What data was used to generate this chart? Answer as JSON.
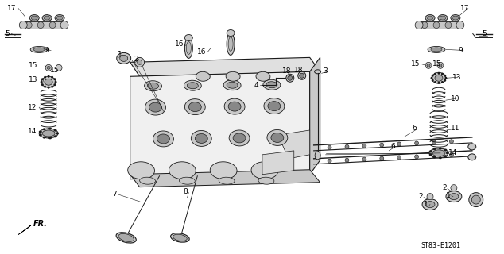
{
  "bg_color": "#ffffff",
  "fig_width": 6.34,
  "fig_height": 3.2,
  "dpi": 100,
  "diagram_code": "ST83-E1201",
  "line_color": "#1a1a1a",
  "fill_light": "#e0e0e0",
  "fill_mid": "#c8c8c8",
  "fill_dark": "#a0a0a0"
}
